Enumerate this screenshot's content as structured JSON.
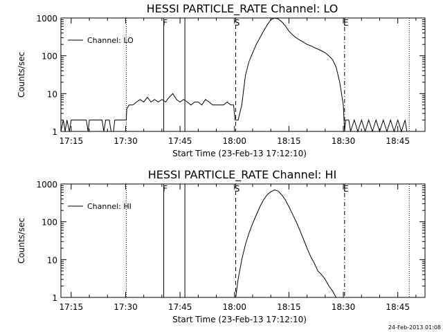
{
  "footer": {
    "timestamp": "24-Feb-2013 01:08"
  },
  "chart_data": [
    {
      "type": "line",
      "title": "HESSI PARTICLE_RATE Channel: LO",
      "xlabel": "Start Time (23-Feb-13 17:12:10)",
      "ylabel": "Counts/sec",
      "ylog": true,
      "ylim": [
        1,
        1000
      ],
      "xlim": [
        "17:12:10",
        "18:52:30"
      ],
      "x_ticks": [
        "17:15",
        "17:30",
        "17:45",
        "18:00",
        "18:15",
        "18:30",
        "18:45"
      ],
      "y_ticks": [
        "1",
        "10",
        "100",
        "1000"
      ],
      "legend": {
        "label": "Channel: LO",
        "placement": "top-left"
      },
      "series": [
        {
          "name": "Channel: LO",
          "points": [
            [
              "17:12:10",
              1
            ],
            [
              "17:12:50",
              2
            ],
            [
              "17:13:20",
              1
            ],
            [
              "17:13:50",
              2
            ],
            [
              "17:14:30",
              1
            ],
            [
              "17:15:00",
              2
            ],
            [
              "17:17:00",
              2
            ],
            [
              "17:19:10",
              2
            ],
            [
              "17:19:40",
              1
            ],
            [
              "17:20:00",
              2
            ],
            [
              "17:22:00",
              2
            ],
            [
              "17:23:30",
              2
            ],
            [
              "17:24:00",
              1
            ],
            [
              "17:24:30",
              2
            ],
            [
              "17:25:30",
              2
            ],
            [
              "17:26:00",
              1
            ],
            [
              "17:26:40",
              1
            ],
            [
              "17:27:00",
              2
            ],
            [
              "17:28:00",
              2
            ],
            [
              "17:29:00",
              2
            ],
            [
              "17:30:10",
              2
            ],
            [
              "17:30:20",
              4
            ],
            [
              "17:31:00",
              5
            ],
            [
              "17:32:00",
              5
            ],
            [
              "17:33:00",
              6
            ],
            [
              "17:34:00",
              7
            ],
            [
              "17:35:00",
              6
            ],
            [
              "17:36:00",
              8
            ],
            [
              "17:37:00",
              6
            ],
            [
              "17:38:00",
              7
            ],
            [
              "17:39:00",
              6
            ],
            [
              "17:40:00",
              7
            ],
            [
              "17:41:00",
              6
            ],
            [
              "17:42:00",
              8
            ],
            [
              "17:43:00",
              10
            ],
            [
              "17:44:00",
              7
            ],
            [
              "17:45:00",
              6
            ],
            [
              "17:46:00",
              7
            ],
            [
              "17:47:00",
              6
            ],
            [
              "17:48:00",
              5
            ],
            [
              "17:49:00",
              6
            ],
            [
              "17:50:00",
              6
            ],
            [
              "17:51:00",
              5
            ],
            [
              "17:52:00",
              7
            ],
            [
              "17:53:00",
              6
            ],
            [
              "17:54:00",
              5
            ],
            [
              "17:55:00",
              5
            ],
            [
              "17:56:00",
              5
            ],
            [
              "17:57:00",
              5
            ],
            [
              "17:58:00",
              6
            ],
            [
              "17:59:00",
              5
            ],
            [
              "17:59:45",
              5
            ],
            [
              "18:00:10",
              2
            ],
            [
              "18:01:00",
              2
            ],
            [
              "18:02:00",
              5
            ],
            [
              "18:03:00",
              30
            ],
            [
              "18:04:00",
              70
            ],
            [
              "18:05:00",
              120
            ],
            [
              "18:06:00",
              200
            ],
            [
              "18:07:00",
              300
            ],
            [
              "18:08:00",
              450
            ],
            [
              "18:09:00",
              650
            ],
            [
              "18:10:00",
              900
            ],
            [
              "18:11:00",
              1000
            ],
            [
              "18:12:00",
              950
            ],
            [
              "18:13:00",
              800
            ],
            [
              "18:14:00",
              620
            ],
            [
              "18:15:00",
              450
            ],
            [
              "18:16:00",
              360
            ],
            [
              "18:17:00",
              300
            ],
            [
              "18:18:00",
              260
            ],
            [
              "18:19:00",
              230
            ],
            [
              "18:20:00",
              200
            ],
            [
              "18:21:00",
              185
            ],
            [
              "18:22:00",
              165
            ],
            [
              "18:23:00",
              150
            ],
            [
              "18:24:00",
              135
            ],
            [
              "18:25:00",
              120
            ],
            [
              "18:26:00",
              100
            ],
            [
              "18:27:00",
              80
            ],
            [
              "18:28:00",
              50
            ],
            [
              "18:29:00",
              20
            ],
            [
              "18:30:00",
              5
            ],
            [
              "18:30:20",
              1
            ],
            [
              "18:30:40",
              2
            ],
            [
              "18:31:30",
              2
            ],
            [
              "18:32:00",
              1
            ],
            [
              "18:33:00",
              2
            ],
            [
              "18:34:00",
              1
            ],
            [
              "18:35:00",
              2
            ],
            [
              "18:36:00",
              1
            ],
            [
              "18:37:00",
              2
            ],
            [
              "18:38:00",
              1
            ],
            [
              "18:39:00",
              2
            ],
            [
              "18:40:00",
              1
            ],
            [
              "18:41:00",
              2
            ],
            [
              "18:42:00",
              1
            ],
            [
              "18:43:00",
              2
            ],
            [
              "18:44:00",
              1
            ],
            [
              "18:45:00",
              2
            ],
            [
              "18:46:00",
              1
            ],
            [
              "18:47:00",
              2
            ],
            [
              "18:47:30",
              1
            ]
          ]
        }
      ],
      "markers": [
        {
          "time": "17:30:10",
          "style": "dotted",
          "label": ""
        },
        {
          "time": "17:40:30",
          "style": "solid",
          "label": "F"
        },
        {
          "time": "17:46:20",
          "style": "solid",
          "label": ""
        },
        {
          "time": "18:00:20",
          "style": "dashed",
          "label": "S"
        },
        {
          "time": "18:30:20",
          "style": "dash-dot",
          "label": "E"
        },
        {
          "time": "18:48:10",
          "style": "dotted",
          "label": ""
        }
      ]
    },
    {
      "type": "line",
      "title": "HESSI PARTICLE_RATE Channel: HI",
      "xlabel": "Start Time (23-Feb-13 17:12:10)",
      "ylabel": "Counts/sec",
      "ylog": true,
      "ylim": [
        1,
        1000
      ],
      "xlim": [
        "17:12:10",
        "18:52:30"
      ],
      "x_ticks": [
        "17:15",
        "17:30",
        "17:45",
        "18:00",
        "18:15",
        "18:30",
        "18:45"
      ],
      "y_ticks": [
        "1",
        "10",
        "100",
        "1000"
      ],
      "legend": {
        "label": "Channel: HI",
        "placement": "top-left"
      },
      "series": [
        {
          "name": "Channel: HI",
          "points": [
            [
              "18:00:20",
              1
            ],
            [
              "18:01:00",
              3
            ],
            [
              "18:02:00",
              10
            ],
            [
              "18:03:00",
              25
            ],
            [
              "18:04:00",
              50
            ],
            [
              "18:05:00",
              90
            ],
            [
              "18:06:00",
              150
            ],
            [
              "18:07:00",
              250
            ],
            [
              "18:08:00",
              380
            ],
            [
              "18:09:00",
              520
            ],
            [
              "18:10:00",
              620
            ],
            [
              "18:11:00",
              700
            ],
            [
              "18:12:00",
              650
            ],
            [
              "18:13:00",
              520
            ],
            [
              "18:14:00",
              380
            ],
            [
              "18:15:00",
              250
            ],
            [
              "18:16:00",
              160
            ],
            [
              "18:17:00",
              100
            ],
            [
              "18:18:00",
              60
            ],
            [
              "18:19:00",
              35
            ],
            [
              "18:20:00",
              20
            ],
            [
              "18:21:00",
              12
            ],
            [
              "18:22:00",
              8
            ],
            [
              "18:23:00",
              5
            ],
            [
              "18:24:00",
              4
            ],
            [
              "18:25:00",
              3
            ],
            [
              "18:26:00",
              2
            ],
            [
              "18:27:00",
              1.5
            ],
            [
              "18:28:00",
              1
            ]
          ]
        }
      ],
      "markers": [
        {
          "time": "17:30:10",
          "style": "dotted",
          "label": ""
        },
        {
          "time": "17:40:30",
          "style": "solid",
          "label": "F"
        },
        {
          "time": "17:46:20",
          "style": "solid",
          "label": ""
        },
        {
          "time": "18:00:20",
          "style": "dashed",
          "label": "S"
        },
        {
          "time": "18:30:20",
          "style": "dash-dot",
          "label": "E"
        },
        {
          "time": "18:48:10",
          "style": "dotted",
          "label": ""
        }
      ]
    }
  ]
}
